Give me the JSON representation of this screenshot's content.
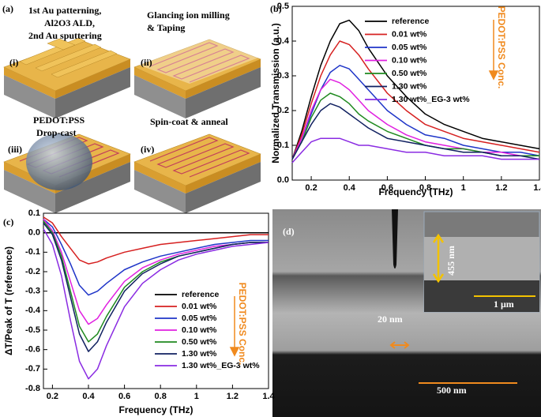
{
  "panel_a": {
    "label": "(a)",
    "steps": [
      {
        "id": "(i)",
        "lines": [
          "1st Au patterning,",
          "Al2O3 ALD,",
          "2nd Au sputtering"
        ]
      },
      {
        "id": "(ii)",
        "lines": [
          "Glancing ion milling",
          "& Taping"
        ]
      },
      {
        "id": "(iii)",
        "lines": [
          "PEDOT:PSS",
          "Drop-cast"
        ]
      },
      {
        "id": "(iv)",
        "lines": [
          "Spin-coat & anneal"
        ]
      }
    ]
  },
  "panel_d": {
    "label": "(d)",
    "inset_thickness": "455 nm",
    "inset_scale": "1 μm",
    "gap": "20 nm",
    "scale": "500 nm"
  },
  "chart_data": [
    {
      "type": "line",
      "panel_label": "(b)",
      "x_label": "Frequency (THz)",
      "y_label": "Normalized Transmission (a.u.)",
      "annotation": "PEDOT:PSS Conc.",
      "legend": "upper right",
      "xlim": [
        0.1,
        1.4
      ],
      "ylim": [
        0,
        0.5
      ],
      "xticks": [
        0.2,
        0.4,
        0.6,
        0.8,
        1.0,
        1.2,
        1.4
      ],
      "yticks": [
        {
          "value": 0,
          "label": "0.0"
        },
        0.1,
        0.2,
        0.3,
        0.4,
        0.5
      ],
      "x": [
        0.1,
        0.15,
        0.2,
        0.25,
        0.3,
        0.35,
        0.4,
        0.45,
        0.5,
        0.6,
        0.7,
        0.8,
        0.9,
        1.0,
        1.1,
        1.2,
        1.3,
        1.4
      ],
      "series": [
        {
          "name": "reference",
          "color": "#000000",
          "values": [
            0.06,
            0.14,
            0.24,
            0.33,
            0.4,
            0.45,
            0.46,
            0.43,
            0.38,
            0.3,
            0.24,
            0.19,
            0.16,
            0.14,
            0.12,
            0.11,
            0.1,
            0.09
          ]
        },
        {
          "name": "0.01 wt%",
          "color": "#d62020",
          "values": [
            0.06,
            0.13,
            0.22,
            0.3,
            0.36,
            0.4,
            0.39,
            0.36,
            0.32,
            0.25,
            0.2,
            0.16,
            0.14,
            0.12,
            0.11,
            0.1,
            0.09,
            0.08
          ]
        },
        {
          "name": "0.05 wt%",
          "color": "#1f35c8",
          "values": [
            0.06,
            0.12,
            0.19,
            0.26,
            0.31,
            0.33,
            0.32,
            0.29,
            0.26,
            0.2,
            0.16,
            0.13,
            0.12,
            0.1,
            0.09,
            0.08,
            0.08,
            0.07
          ]
        },
        {
          "name": "0.10 wt%",
          "color": "#e020e0",
          "values": [
            0.06,
            0.12,
            0.2,
            0.26,
            0.29,
            0.28,
            0.26,
            0.23,
            0.2,
            0.16,
            0.13,
            0.11,
            0.1,
            0.09,
            0.08,
            0.08,
            0.07,
            0.07
          ]
        },
        {
          "name": "0.50 wt%",
          "color": "#1f8a1f",
          "values": [
            0.06,
            0.11,
            0.18,
            0.23,
            0.25,
            0.24,
            0.22,
            0.19,
            0.17,
            0.14,
            0.12,
            0.1,
            0.09,
            0.09,
            0.08,
            0.07,
            0.07,
            0.07
          ]
        },
        {
          "name": "1.30 wt%",
          "color": "#102060",
          "values": [
            0.06,
            0.11,
            0.16,
            0.2,
            0.22,
            0.21,
            0.19,
            0.17,
            0.15,
            0.12,
            0.11,
            0.1,
            0.09,
            0.08,
            0.08,
            0.07,
            0.07,
            0.06
          ]
        },
        {
          "name": "1.30 wt%_EG-3 wt%",
          "color": "#8a2be2",
          "values": [
            0.05,
            0.08,
            0.11,
            0.12,
            0.12,
            0.12,
            0.11,
            0.1,
            0.1,
            0.09,
            0.08,
            0.08,
            0.07,
            0.07,
            0.07,
            0.06,
            0.06,
            0.06
          ]
        }
      ]
    },
    {
      "type": "line",
      "panel_label": "(c)",
      "x_label": "Frequency (THz)",
      "y_label": "ΔT/Peak of T (reference)",
      "annotation": "PEDOT:PSS Conc.",
      "legend": "lower right",
      "xlim": [
        0.15,
        1.4
      ],
      "ylim": [
        -0.8,
        0.1
      ],
      "xticks": [
        0.2,
        0.4,
        0.6,
        0.8,
        1.0,
        1.2,
        1.4
      ],
      "yticks": [
        0.1,
        {
          "value": 0,
          "label": "0.0"
        },
        -0.1,
        -0.2,
        -0.3,
        -0.4,
        -0.5,
        -0.6,
        -0.7,
        -0.8
      ],
      "x": [
        0.15,
        0.2,
        0.25,
        0.3,
        0.35,
        0.4,
        0.45,
        0.5,
        0.6,
        0.7,
        0.8,
        0.9,
        1.0,
        1.1,
        1.2,
        1.3,
        1.4
      ],
      "series": [
        {
          "name": "reference",
          "color": "#000000",
          "values": [
            0,
            0,
            0,
            0,
            0,
            0,
            0,
            0,
            0,
            0,
            0,
            0,
            0,
            0,
            0,
            0,
            0
          ]
        },
        {
          "name": "0.01 wt%",
          "color": "#d62020",
          "values": [
            0.08,
            0.05,
            -0.02,
            -0.08,
            -0.14,
            -0.16,
            -0.15,
            -0.13,
            -0.1,
            -0.08,
            -0.06,
            -0.05,
            -0.04,
            -0.03,
            -0.02,
            -0.01,
            -0.01
          ]
        },
        {
          "name": "0.05 wt%",
          "color": "#1f35c8",
          "values": [
            0.07,
            0.03,
            -0.06,
            -0.16,
            -0.27,
            -0.32,
            -0.3,
            -0.26,
            -0.19,
            -0.15,
            -0.12,
            -0.1,
            -0.08,
            -0.06,
            -0.05,
            -0.04,
            -0.04
          ]
        },
        {
          "name": "0.10 wt%",
          "color": "#e020e0",
          "values": [
            0.07,
            0.01,
            -0.1,
            -0.25,
            -0.4,
            -0.47,
            -0.44,
            -0.37,
            -0.25,
            -0.18,
            -0.14,
            -0.11,
            -0.09,
            -0.07,
            -0.06,
            -0.05,
            -0.05
          ]
        },
        {
          "name": "0.50 wt%",
          "color": "#1f8a1f",
          "values": [
            0.06,
            0.0,
            -0.12,
            -0.3,
            -0.48,
            -0.56,
            -0.52,
            -0.43,
            -0.28,
            -0.2,
            -0.15,
            -0.12,
            -0.1,
            -0.08,
            -0.06,
            -0.05,
            -0.05
          ]
        },
        {
          "name": "1.30 wt%",
          "color": "#102060",
          "values": [
            0.05,
            -0.01,
            -0.14,
            -0.33,
            -0.52,
            -0.61,
            -0.56,
            -0.46,
            -0.3,
            -0.21,
            -0.16,
            -0.12,
            -0.1,
            -0.08,
            -0.06,
            -0.05,
            -0.05
          ]
        },
        {
          "name": "1.30 wt%_EG-3 wt%",
          "color": "#8a2be2",
          "values": [
            0.02,
            -0.06,
            -0.22,
            -0.45,
            -0.66,
            -0.75,
            -0.7,
            -0.58,
            -0.38,
            -0.26,
            -0.19,
            -0.14,
            -0.11,
            -0.09,
            -0.07,
            -0.06,
            -0.05
          ]
        }
      ]
    }
  ]
}
